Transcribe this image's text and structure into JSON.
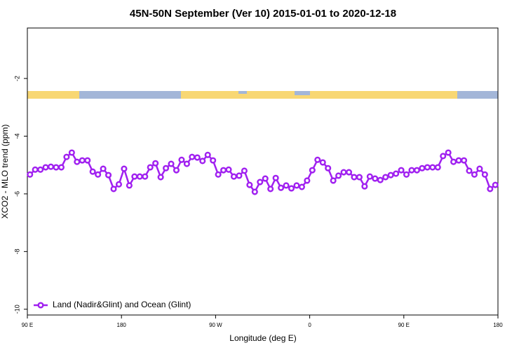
{
  "chart_data": {
    "type": "line",
    "title": "45N-50N September (Ver 10)   2015-01-01 to 2020-12-18",
    "x_label": "Longitude (deg E)",
    "y_label": "XCO2 - MLO trend (ppm)",
    "x": [
      92.5,
      97.5,
      102.5,
      107.5,
      112.5,
      117.5,
      122.5,
      127.5,
      132.5,
      137.5,
      142.5,
      147.5,
      152.5,
      157.5,
      162.5,
      167.5,
      172.5,
      177.5,
      182.5,
      187.5,
      192.5,
      197.5,
      202.5,
      207.5,
      212.5,
      217.5,
      222.5,
      227.5,
      232.5,
      237.5,
      242.5,
      247.5,
      252.5,
      257.5,
      262.5,
      267.5,
      272.5,
      277.5,
      282.5,
      287.5,
      292.5,
      297.5,
      302.5,
      307.5,
      312.5,
      317.5,
      322.5,
      327.5,
      332.5,
      337.5,
      342.5,
      347.5,
      352.5,
      357.5,
      362.5,
      367.5,
      372.5,
      377.5,
      382.5,
      387.5,
      392.5,
      397.5,
      402.5,
      407.5,
      412.5,
      417.5,
      422.5,
      427.5,
      432.5,
      437.5,
      442.5,
      447.5,
      452.5,
      457.5,
      462.5,
      467.5,
      472.5,
      477.5,
      482.5,
      487.5,
      492.5,
      497.5,
      502.5,
      507.5,
      512.5,
      517.5,
      522.5,
      527.5,
      532.5,
      537.5
    ],
    "series": [
      {
        "name": "Land (Nadir&Glint) and Ocean (Glint)",
        "color": "#a020f0",
        "values": [
          -5.33,
          -5.16,
          -5.16,
          -5.08,
          -5.06,
          -5.08,
          -5.08,
          -4.72,
          -4.57,
          -4.89,
          -4.84,
          -4.84,
          -5.23,
          -5.33,
          -5.13,
          -5.35,
          -5.83,
          -5.67,
          -5.13,
          -5.71,
          -5.4,
          -5.4,
          -5.4,
          -5.08,
          -4.94,
          -5.42,
          -5.11,
          -4.96,
          -5.18,
          -4.82,
          -4.96,
          -4.72,
          -4.74,
          -4.86,
          -4.65,
          -4.84,
          -5.33,
          -5.18,
          -5.16,
          -5.4,
          -5.37,
          -5.2,
          -5.69,
          -5.93,
          -5.59,
          -5.47,
          -5.83,
          -5.45,
          -5.79,
          -5.71,
          -5.81,
          -5.71,
          -5.76,
          -5.54,
          -5.18,
          -4.82,
          -4.91,
          -5.11,
          -5.54,
          -5.37,
          -5.25,
          -5.25,
          -5.42,
          -5.42,
          -5.74,
          -5.4,
          -5.47,
          -5.52,
          -5.42,
          -5.35,
          -5.3,
          -5.18,
          -5.33,
          -5.18,
          -5.18,
          -5.11,
          -5.08,
          -5.08,
          -5.08,
          -4.69,
          -4.57,
          -4.89,
          -4.84,
          -4.84,
          -5.2,
          -5.33,
          -5.13,
          -5.33,
          -5.83,
          -5.69
        ]
      }
    ],
    "xlim": [
      90,
      540
    ],
    "xticks": [
      {
        "value": 90,
        "label": "90 E"
      },
      {
        "value": 180,
        "label": "180"
      },
      {
        "value": 270,
        "label": "90 W"
      },
      {
        "value": 360,
        "label": "0"
      },
      {
        "value": 450,
        "label": "90 E"
      },
      {
        "value": 540,
        "label": "180"
      }
    ],
    "ylim": [
      -10.2,
      -0.25
    ],
    "yticks": [
      -2,
      -4,
      -6,
      -8,
      -10
    ],
    "legend": "bottom-left"
  }
}
